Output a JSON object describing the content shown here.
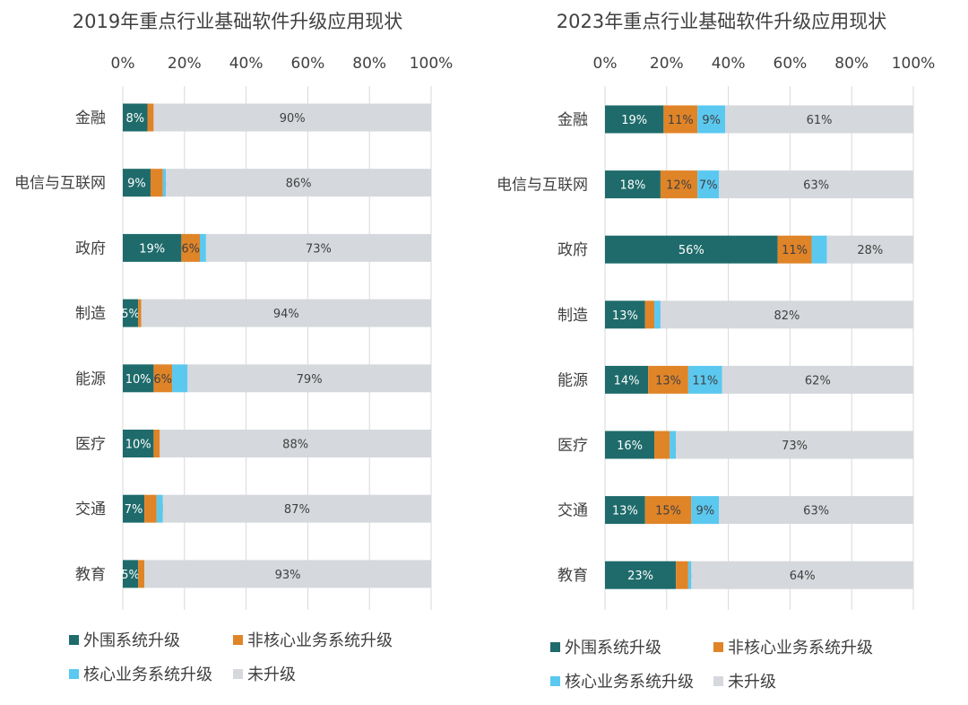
{
  "chart_data": [
    {
      "type": "bar",
      "orientation": "horizontal",
      "stacked": true,
      "title": "2019年重点行业基础软件升级应用现状",
      "xlabel": "",
      "ylabel": "",
      "xlim": [
        0,
        100
      ],
      "x_ticks": [
        "0%",
        "20%",
        "40%",
        "60%",
        "80%",
        "100%"
      ],
      "x_axis_position": "top",
      "grid": true,
      "legend_position": "bottom",
      "categories": [
        "金融",
        "电信与互联网",
        "政府",
        "制造",
        "能源",
        "医疗",
        "交通",
        "教育"
      ],
      "series": [
        {
          "name": "外围系统升级",
          "color": "#1f6b6b",
          "values": [
            8,
            9,
            19,
            5,
            10,
            10,
            7,
            5
          ]
        },
        {
          "name": "非核心业务系统升级",
          "color": "#e08428",
          "values": [
            2,
            4,
            6,
            1,
            6,
            2,
            4,
            2
          ]
        },
        {
          "name": "核心业务系统升级",
          "color": "#5bc8f0",
          "values": [
            0,
            1,
            2,
            0,
            5,
            0,
            2,
            0
          ]
        },
        {
          "name": "未升级",
          "color": "#d5d8dc",
          "values": [
            90,
            86,
            73,
            94,
            79,
            88,
            87,
            93
          ]
        }
      ],
      "data_labels": [
        [
          "8%",
          "2%",
          "",
          "90%"
        ],
        [
          "9%",
          "4%",
          "1%",
          "86%"
        ],
        [
          "19%",
          "6%",
          "2%",
          "73%"
        ],
        [
          "5%",
          "1%",
          "",
          "94%"
        ],
        [
          "10%",
          "6%",
          "5%",
          "79%"
        ],
        [
          "10%",
          "2%",
          "",
          "88%"
        ],
        [
          "7%",
          "4%",
          "2%",
          "87%"
        ],
        [
          "5%",
          "2%",
          "",
          "93%"
        ]
      ]
    },
    {
      "type": "bar",
      "orientation": "horizontal",
      "stacked": true,
      "title": "2023年重点行业基础软件升级应用现状",
      "xlabel": "",
      "ylabel": "",
      "xlim": [
        0,
        100
      ],
      "x_ticks": [
        "0%",
        "20%",
        "40%",
        "60%",
        "80%",
        "100%"
      ],
      "x_axis_position": "top",
      "grid": true,
      "legend_position": "bottom",
      "categories": [
        "金融",
        "电信与互联网",
        "政府",
        "制造",
        "能源",
        "医疗",
        "交通",
        "教育"
      ],
      "series": [
        {
          "name": "外围系统升级",
          "color": "#1f6b6b",
          "values": [
            19,
            18,
            56,
            13,
            14,
            16,
            13,
            23
          ]
        },
        {
          "name": "非核心业务系统升级",
          "color": "#e08428",
          "values": [
            11,
            12,
            11,
            3,
            13,
            5,
            15,
            4
          ]
        },
        {
          "name": "核心业务系统升级",
          "color": "#5bc8f0",
          "values": [
            9,
            7,
            5,
            2,
            11,
            2,
            9,
            1
          ]
        },
        {
          "name": "未升级",
          "color": "#d5d8dc",
          "values": [
            61,
            63,
            28,
            82,
            62,
            73,
            63,
            64
          ]
        }
      ],
      "data_labels": [
        [
          "19%",
          "11%",
          "9%",
          "61%"
        ],
        [
          "18%",
          "12%",
          "7%",
          "63%"
        ],
        [
          "56%",
          "11%",
          "5%",
          "28%"
        ],
        [
          "13%",
          "3%",
          "2%",
          "82%"
        ],
        [
          "14%",
          "13%",
          "11%",
          "62%"
        ],
        [
          "16%",
          "5%",
          "2%",
          "73%"
        ],
        [
          "13%",
          "15%",
          "9%",
          "63%"
        ],
        [
          "23%",
          "4%",
          "1%",
          "64%"
        ]
      ]
    }
  ]
}
